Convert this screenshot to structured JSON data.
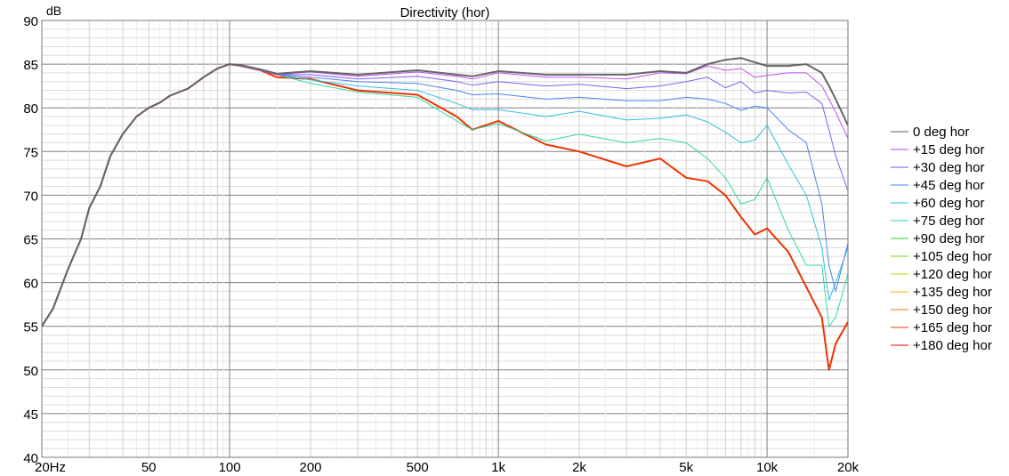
{
  "chart_data": {
    "type": "line",
    "title": "Directivity (hor)",
    "ylabel": "dB",
    "xlabel": "",
    "xscale": "log",
    "xlim": [
      20,
      20000
    ],
    "ylim": [
      40,
      90
    ],
    "grid": true,
    "legend_placement": "right",
    "xticks": [
      {
        "v": 20,
        "label": "20Hz"
      },
      {
        "v": 50,
        "label": "50"
      },
      {
        "v": 100,
        "label": "100"
      },
      {
        "v": 200,
        "label": "200"
      },
      {
        "v": 500,
        "label": "500"
      },
      {
        "v": 1000,
        "label": "1k"
      },
      {
        "v": 2000,
        "label": "2k"
      },
      {
        "v": 5000,
        "label": "5k"
      },
      {
        "v": 10000,
        "label": "10k"
      },
      {
        "v": 20000,
        "label": "20k"
      }
    ],
    "yticks": [
      {
        "v": 40,
        "label": "40"
      },
      {
        "v": 45,
        "label": "45"
      },
      {
        "v": 50,
        "label": "50"
      },
      {
        "v": 55,
        "label": "55"
      },
      {
        "v": 60,
        "label": "60"
      },
      {
        "v": 65,
        "label": "65"
      },
      {
        "v": 70,
        "label": "70"
      },
      {
        "v": 75,
        "label": "75"
      },
      {
        "v": 80,
        "label": "80"
      },
      {
        "v": 85,
        "label": "85"
      },
      {
        "v": 90,
        "label": "90"
      }
    ],
    "x": [
      20,
      22,
      25,
      28,
      30,
      33,
      36,
      40,
      45,
      50,
      55,
      60,
      70,
      80,
      90,
      100,
      110,
      130,
      150,
      200,
      300,
      500,
      700,
      800,
      1000,
      1500,
      2000,
      3000,
      4000,
      5000,
      6000,
      7000,
      8000,
      9000,
      10000,
      12000,
      14000,
      16000,
      17000,
      18000,
      20000
    ],
    "legend": [
      {
        "name": "0 deg hor",
        "color": "#606060"
      },
      {
        "name": "+15 deg hor",
        "color": "#b040ff"
      },
      {
        "name": "+30 deg hor",
        "color": "#7050ff"
      },
      {
        "name": "+45 deg hor",
        "color": "#4080ff"
      },
      {
        "name": "+60 deg hor",
        "color": "#20c0e0"
      },
      {
        "name": "+75 deg hor",
        "color": "#20e0a0"
      },
      {
        "name": "+90 deg hor",
        "color": "#20e020"
      },
      {
        "name": "+105 deg hor",
        "color": "#60e000"
      },
      {
        "name": "+120 deg hor",
        "color": "#c0d000"
      },
      {
        "name": "+135 deg hor",
        "color": "#f0b000"
      },
      {
        "name": "+150 deg hor",
        "color": "#f07000"
      },
      {
        "name": "+165 deg hor",
        "color": "#f04000"
      },
      {
        "name": "+180 deg hor",
        "color": "#ff0000"
      }
    ],
    "series": [
      {
        "name": "+180 deg hor",
        "color": "#ee3300",
        "width": 2,
        "values": [
          55,
          57,
          61.5,
          65,
          68.5,
          71,
          74.5,
          77,
          79,
          80,
          80.6,
          81.4,
          82.2,
          83.5,
          84.5,
          85,
          84.8,
          84.3,
          83.5,
          83.3,
          82,
          81.5,
          79,
          77.5,
          78.5,
          75.8,
          75,
          73.3,
          74.2,
          72,
          71.6,
          70,
          67.5,
          65.5,
          66.2,
          63.5,
          59.5,
          56,
          50,
          53,
          55.5
        ]
      },
      {
        "name": "+75 deg hor",
        "color": "#30d8a0",
        "width": 1,
        "values": [
          55,
          57,
          61.5,
          65,
          68.5,
          71,
          74.5,
          77,
          79,
          80,
          80.6,
          81.4,
          82.2,
          83.5,
          84.5,
          85,
          84.8,
          84.3,
          83.8,
          82.8,
          81.8,
          81.2,
          78.5,
          77.5,
          78.2,
          76.2,
          77,
          76,
          76.5,
          76,
          74.2,
          72,
          69,
          69.5,
          72,
          66,
          62,
          62,
          55,
          56,
          61
        ]
      },
      {
        "name": "+60 deg hor",
        "color": "#30c0e0",
        "width": 1,
        "values": [
          55,
          57,
          61.5,
          65,
          68.5,
          71,
          74.5,
          77,
          79,
          80,
          80.6,
          81.4,
          82.2,
          83.5,
          84.5,
          85,
          84.8,
          84.3,
          83.8,
          83.2,
          82.5,
          82,
          80.5,
          79.8,
          79.8,
          79,
          79.6,
          78.6,
          78.8,
          79.2,
          78.4,
          77.2,
          76,
          76.3,
          78,
          73.5,
          70,
          64,
          58,
          60,
          64
        ]
      },
      {
        "name": "+45 deg hor",
        "color": "#5080f0",
        "width": 1,
        "values": [
          55,
          57,
          61.5,
          65,
          68.5,
          71,
          74.5,
          77,
          79,
          80,
          80.6,
          81.4,
          82.2,
          83.5,
          84.5,
          85,
          84.8,
          84.3,
          83.8,
          83.5,
          83,
          82.8,
          82,
          81.5,
          81.6,
          81,
          81.2,
          80.8,
          80.8,
          81.2,
          81,
          80.5,
          79.7,
          80.2,
          80,
          77.5,
          76,
          69,
          62,
          59,
          64.5
        ]
      },
      {
        "name": "+30 deg hor",
        "color": "#8060f0",
        "width": 1,
        "values": [
          55,
          57,
          61.5,
          65,
          68.5,
          71,
          74.5,
          77,
          79,
          80,
          80.6,
          81.4,
          82.2,
          83.5,
          84.5,
          85,
          84.8,
          84.3,
          83.8,
          83.8,
          83.3,
          83.6,
          83,
          82.6,
          83,
          82.5,
          82.7,
          82.2,
          82.5,
          83,
          83.5,
          82.3,
          83,
          81.7,
          82,
          81.7,
          81.8,
          80.5,
          77.5,
          74.5,
          70.5
        ]
      },
      {
        "name": "+15 deg hor",
        "color": "#c050f0",
        "width": 1,
        "values": [
          55,
          57,
          61.5,
          65,
          68.5,
          71,
          74.5,
          77,
          79,
          80,
          80.6,
          81.4,
          82.2,
          83.5,
          84.5,
          85,
          84.8,
          84.3,
          83.8,
          84.1,
          83.6,
          84.1,
          83.6,
          83.3,
          84,
          83.5,
          83.5,
          83.3,
          84,
          83.9,
          84.8,
          84.3,
          84.5,
          83.5,
          83.7,
          84,
          84,
          82.5,
          81,
          79.5,
          76.5
        ]
      },
      {
        "name": "0 deg hor",
        "color": "#666666",
        "width": 2,
        "values": [
          55,
          57,
          61.5,
          65,
          68.5,
          71,
          74.5,
          77,
          79,
          80,
          80.6,
          81.4,
          82.2,
          83.5,
          84.5,
          85,
          84.9,
          84.4,
          83.9,
          84.2,
          83.8,
          84.3,
          83.8,
          83.6,
          84.2,
          83.8,
          83.8,
          83.8,
          84.2,
          84,
          85,
          85.5,
          85.7,
          85.2,
          84.8,
          84.8,
          85,
          84,
          82.5,
          81,
          78
        ]
      }
    ]
  }
}
